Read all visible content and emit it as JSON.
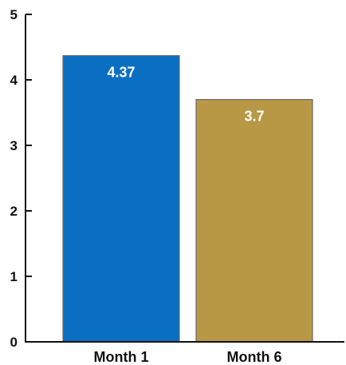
{
  "chart_data": {
    "type": "bar",
    "title": "",
    "xlabel": "",
    "ylabel": "",
    "categories": [
      "Month 1",
      "Month 6"
    ],
    "values": [
      4.37,
      3.7
    ],
    "value_labels": [
      "4.37",
      "3.7"
    ],
    "colors": [
      "#0A6FC2",
      "#B89844"
    ],
    "ylim": [
      0,
      5
    ],
    "yticks": [
      0,
      1,
      2,
      3,
      4,
      5
    ],
    "ytick_labels": [
      "0",
      "1",
      "2",
      "3",
      "4",
      "5"
    ],
    "grid": false,
    "legend": "none"
  }
}
